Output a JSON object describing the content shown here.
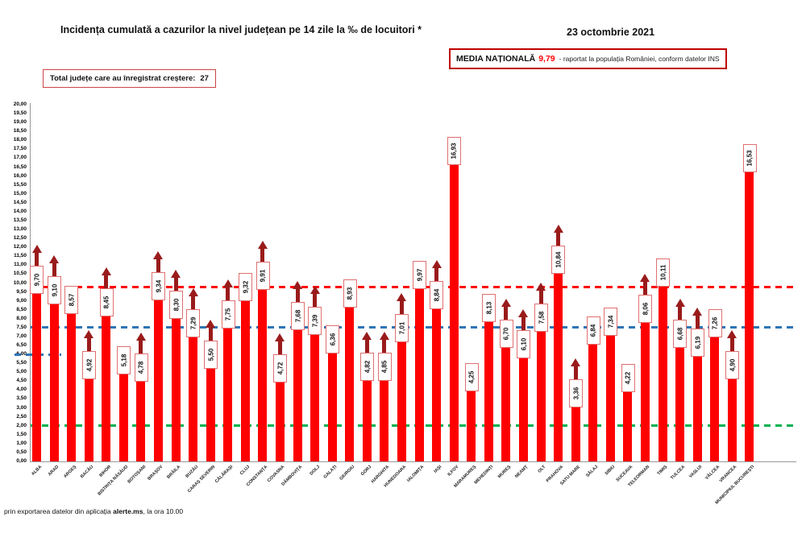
{
  "header": {
    "title": "Incidența cumulată a cazurilor la nivel județean pe 14 zile la ‰ de locuitori *",
    "date": "23 octombrie 2021",
    "media_label": "MEDIA NAȚIONALĂ",
    "media_value": "9,79",
    "media_suffix": "-  raportat la populația României, conform datelor INS",
    "total_label": "Total județe care au înregistrat creștere:",
    "total_value": "27"
  },
  "footer": {
    "prefix": "prin exportarea datelor din aplicația ",
    "bold": "alerte.ms",
    "suffix": ", la ora 10.00"
  },
  "chart_data": {
    "type": "bar",
    "title": "Incidența cumulată a cazurilor la nivel județean pe 14 zile la ‰ de locuitori *",
    "xlabel": "",
    "ylabel": "",
    "ylim": [
      0,
      20
    ],
    "ytick_step": 0.5,
    "grid": false,
    "bar_color": "#fe0000",
    "arrow_color": "#9a1b1b",
    "categories": [
      "ALBA",
      "ARAD",
      "ARGEȘ",
      "BACĂU",
      "BIHOR",
      "BISTRIȚA NĂSĂUD",
      "BOTOȘANI",
      "BRAȘOV",
      "BRĂILA",
      "BUZĂU",
      "CARAȘ SEVERIN",
      "CĂLĂRAȘI",
      "CLUJ",
      "CONSTANȚA",
      "COVASNA",
      "DÂMBOVIȚA",
      "DOLJ",
      "GALAȚI",
      "GIURGIU",
      "GORJ",
      "HARGHITA",
      "HUNEDOARA",
      "IALOMIȚA",
      "IAȘI",
      "ILFOV",
      "MARAMUREȘ",
      "MEHEDINȚI",
      "MUREȘ",
      "NEAMȚ",
      "OLT",
      "PRAHOVA",
      "SATU MARE",
      "SĂLAJ",
      "SIBIU",
      "SUCEAVA",
      "TELEORMAN",
      "TIMIȘ",
      "TULCEA",
      "VASLUI",
      "VÂLCEA",
      "VRANCEA",
      "MUNICIPIUL BUCUREȘTI"
    ],
    "values": [
      9.7,
      9.1,
      8.57,
      4.92,
      8.45,
      5.18,
      4.78,
      9.34,
      8.3,
      7.29,
      5.5,
      7.75,
      9.32,
      9.91,
      4.72,
      7.68,
      7.39,
      6.36,
      8.93,
      4.82,
      4.85,
      7.01,
      9.97,
      8.84,
      16.93,
      4.25,
      8.13,
      6.7,
      6.1,
      7.58,
      10.84,
      3.36,
      6.84,
      7.34,
      4.22,
      8.06,
      10.11,
      6.68,
      6.19,
      7.26,
      4.9,
      16.53
    ],
    "increase_arrow": [
      1,
      1,
      0,
      1,
      1,
      0,
      1,
      1,
      1,
      1,
      1,
      1,
      0,
      1,
      1,
      1,
      1,
      0,
      0,
      1,
      1,
      1,
      0,
      1,
      0,
      0,
      0,
      1,
      1,
      1,
      1,
      1,
      0,
      0,
      0,
      1,
      0,
      1,
      1,
      0,
      1,
      0
    ],
    "reference_lines": [
      {
        "name": "media-nationala",
        "value": 9.79,
        "color": "#ff0000"
      },
      {
        "name": "prag-7-5",
        "value": 7.5,
        "color": "#2e75b6"
      },
      {
        "name": "prag-2",
        "value": 2.0,
        "color": "#00b050"
      }
    ],
    "partial_line": {
      "name": "segment-6",
      "value": 6.0,
      "color": "#2e75b6",
      "x_from": 18,
      "x_to": 76
    },
    "legend_position": "none"
  }
}
